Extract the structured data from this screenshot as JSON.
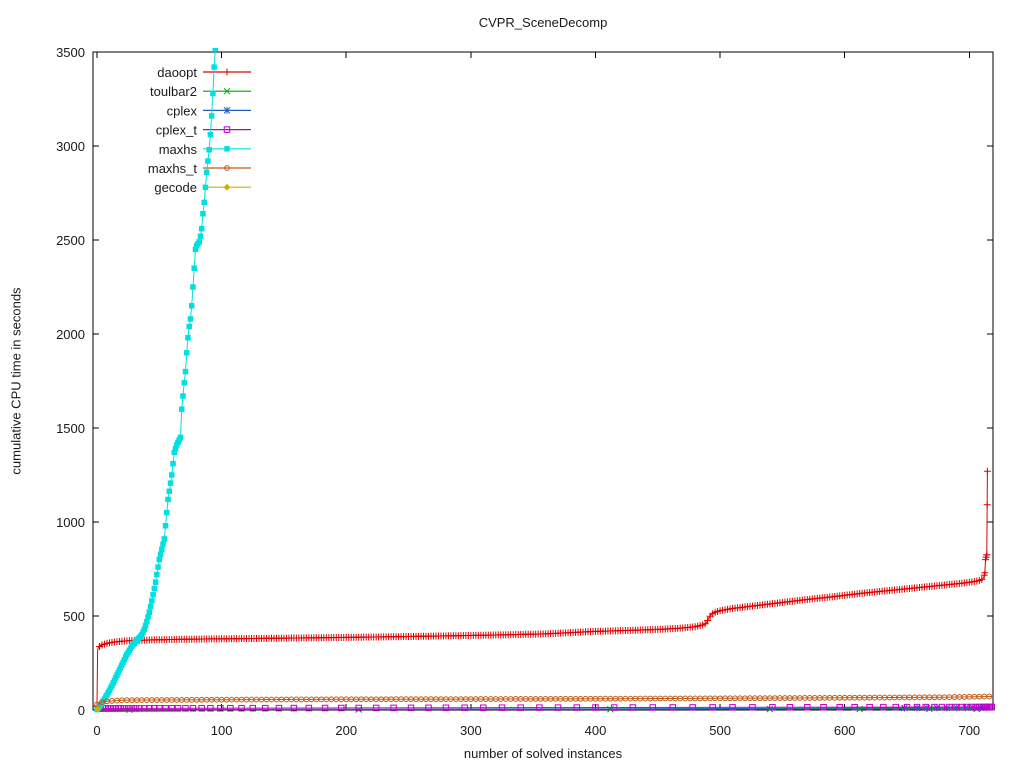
{
  "chart_data": {
    "type": "line",
    "title": "CVPR_SceneDecomp",
    "xlabel": "number of solved instances",
    "ylabel": "cumulative CPU time in seconds",
    "xlim": [
      0,
      719
    ],
    "ylim": [
      0,
      3500
    ],
    "xticks": [
      0,
      100,
      200,
      300,
      400,
      500,
      600,
      700
    ],
    "yticks": [
      0,
      500,
      1000,
      1500,
      2000,
      2500,
      3000,
      3500
    ],
    "grid": false,
    "legend_position": "top-left",
    "frame_color": "#000000",
    "background": "#ffffff",
    "series": [
      {
        "name": "daoopt",
        "color": "#e00000",
        "marker": "plus",
        "marker_step": 2,
        "marker_xs": [
          712.5,
          713,
          713.5,
          714,
          714.3,
          714.5
        ],
        "points": [
          [
            0,
            20
          ],
          [
            0.5,
            318
          ],
          [
            1,
            330
          ],
          [
            2,
            338
          ],
          [
            4,
            346
          ],
          [
            7,
            353
          ],
          [
            12,
            360
          ],
          [
            20,
            366
          ],
          [
            30,
            370
          ],
          [
            45,
            373
          ],
          [
            60,
            375
          ],
          [
            90,
            378
          ],
          [
            120,
            380
          ],
          [
            160,
            383
          ],
          [
            200,
            386
          ],
          [
            240,
            390
          ],
          [
            280,
            394
          ],
          [
            320,
            399
          ],
          [
            360,
            405
          ],
          [
            400,
            418
          ],
          [
            430,
            424
          ],
          [
            455,
            430
          ],
          [
            470,
            436
          ],
          [
            480,
            443
          ],
          [
            486,
            452
          ],
          [
            489,
            462
          ],
          [
            491,
            490
          ],
          [
            493,
            508
          ],
          [
            496,
            520
          ],
          [
            500,
            528
          ],
          [
            510,
            540
          ],
          [
            530,
            556
          ],
          [
            550,
            572
          ],
          [
            570,
            588
          ],
          [
            590,
            602
          ],
          [
            610,
            618
          ],
          [
            630,
            632
          ],
          [
            650,
            645
          ],
          [
            670,
            658
          ],
          [
            685,
            668
          ],
          [
            695,
            675
          ],
          [
            703,
            682
          ],
          [
            708,
            688
          ],
          [
            710,
            695
          ],
          [
            711.5,
            705
          ],
          [
            712.5,
            730
          ],
          [
            713,
            800
          ],
          [
            714,
            825
          ],
          [
            714.5,
            1270
          ]
        ]
      },
      {
        "name": "toulbar2",
        "color": "#00a800",
        "marker": "cross",
        "marker_xs": [
          26,
          210,
          412,
          540,
          612,
          668,
          706
        ],
        "points": [
          [
            0,
            1
          ],
          [
            300,
            3
          ],
          [
            716,
            6
          ]
        ]
      },
      {
        "name": "cplex",
        "color": "#2060c0",
        "marker": "star",
        "marker_xs": [
          648,
          658,
          666,
          674,
          682,
          690,
          697,
          703,
          709,
          714
        ],
        "points": [
          [
            0,
            2
          ],
          [
            400,
            6
          ],
          [
            716,
            12
          ]
        ]
      },
      {
        "name": "cplex_t",
        "color": "#c000c8",
        "marker": "square",
        "marker_xs": [
          1,
          3,
          5,
          7,
          9,
          11,
          13,
          15,
          17,
          19,
          22,
          25,
          28,
          31,
          34,
          38,
          42,
          46,
          50,
          55,
          60,
          65,
          71,
          77,
          84,
          91,
          99,
          107,
          116,
          125,
          135,
          146,
          158,
          170,
          183,
          196,
          210,
          224,
          238,
          252,
          266,
          280,
          295,
          310,
          325,
          340,
          355,
          370,
          385,
          400,
          415,
          430,
          446,
          462,
          478,
          494,
          510,
          526,
          542,
          556,
          570,
          583,
          596,
          608,
          620,
          631,
          641,
          650,
          658,
          665,
          672,
          678,
          684,
          689,
          694,
          698,
          702,
          705,
          708,
          710,
          712,
          713,
          714,
          715,
          716,
          717,
          718
        ],
        "points": [
          [
            0,
            8
          ],
          [
            300,
            12
          ],
          [
            718,
            16
          ]
        ]
      },
      {
        "name": "maxhs",
        "color": "#00e0e0",
        "marker": "fsquare",
        "marker_step": 1,
        "points": [
          [
            0,
            2
          ],
          [
            4,
            35
          ],
          [
            8,
            80
          ],
          [
            12,
            130
          ],
          [
            16,
            185
          ],
          [
            20,
            240
          ],
          [
            24,
            295
          ],
          [
            28,
            340
          ],
          [
            32,
            370
          ],
          [
            36,
            400
          ],
          [
            38,
            430
          ],
          [
            40,
            470
          ],
          [
            42,
            520
          ],
          [
            44,
            580
          ],
          [
            47,
            680
          ],
          [
            50,
            800
          ],
          [
            54,
            910
          ],
          [
            56,
            1050
          ],
          [
            57,
            1120
          ],
          [
            60,
            1250
          ],
          [
            62,
            1370
          ],
          [
            64,
            1410
          ],
          [
            67,
            1450
          ],
          [
            68,
            1600
          ],
          [
            70,
            1740
          ],
          [
            71,
            1800
          ],
          [
            72,
            1900
          ],
          [
            73,
            1980
          ],
          [
            74,
            2040
          ],
          [
            75,
            2080
          ],
          [
            76,
            2150
          ],
          [
            77,
            2250
          ],
          [
            78,
            2350
          ],
          [
            79,
            2450
          ],
          [
            80,
            2470
          ],
          [
            82,
            2490
          ],
          [
            83,
            2520
          ],
          [
            84,
            2560
          ],
          [
            85,
            2640
          ],
          [
            86,
            2700
          ],
          [
            87,
            2780
          ],
          [
            88,
            2860
          ],
          [
            89,
            2920
          ],
          [
            90,
            2980
          ],
          [
            91,
            3060
          ],
          [
            92,
            3160
          ],
          [
            93,
            3280
          ],
          [
            94,
            3420
          ],
          [
            95,
            3520
          ]
        ]
      },
      {
        "name": "maxhs_t",
        "color": "#bf5b17",
        "marker": "circle",
        "marker_step": 4,
        "points": [
          [
            0,
            30
          ],
          [
            5,
            45
          ],
          [
            20,
            52
          ],
          [
            100,
            55
          ],
          [
            200,
            57
          ],
          [
            300,
            58
          ],
          [
            400,
            60
          ],
          [
            500,
            62
          ],
          [
            600,
            65
          ],
          [
            680,
            68
          ],
          [
            718,
            72
          ]
        ]
      },
      {
        "name": "gecode",
        "color": "#c8b400",
        "marker": "fdiamond",
        "marker_xs": [
          0.7
        ],
        "points": [
          [
            0.2,
            2
          ],
          [
            1.2,
            5
          ]
        ]
      }
    ],
    "legend": {
      "entries": [
        "daoopt",
        "toulbar2",
        "cplex",
        "cplex_t",
        "maxhs",
        "maxhs_t",
        "gecode"
      ]
    }
  }
}
